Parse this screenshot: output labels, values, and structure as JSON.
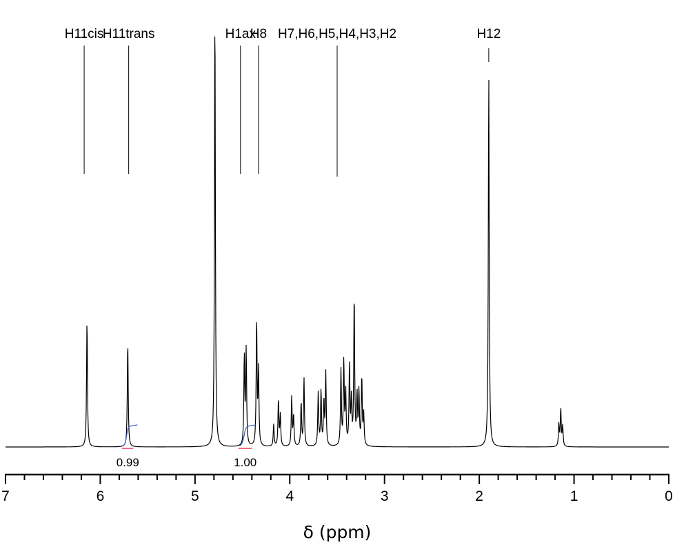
{
  "chart_data": {
    "type": "line",
    "title": "",
    "xlabel": "δ (ppm)",
    "ylabel": "",
    "xlim": [
      7,
      0
    ],
    "x_reversed": true,
    "x_ticks": [
      7,
      6,
      5,
      4,
      3,
      2,
      1,
      0
    ],
    "x_tick_labels": [
      "7",
      "6",
      "5",
      "4",
      "3",
      "2",
      "1",
      "0"
    ],
    "grid": false,
    "legend": "none",
    "line_color": "#000000",
    "peak_labels": [
      {
        "text": "H11cis",
        "ppm": 6.17
      },
      {
        "text": "H11trans",
        "ppm": 5.7
      },
      {
        "text": "H1ax",
        "ppm": 4.52
      },
      {
        "text": "H8",
        "ppm": 4.33
      },
      {
        "text": "H7,H6,H5,H4,H3,H2",
        "ppm": 3.5
      },
      {
        "text": "H12",
        "ppm": 1.9
      }
    ],
    "integrals": [
      {
        "value": "0.99",
        "ppm_from": 5.75,
        "ppm_to": 5.68,
        "center_ppm": 5.71
      },
      {
        "value": "1.00",
        "ppm_from": 4.52,
        "ppm_to": 4.43,
        "center_ppm": 4.47
      }
    ],
    "integral_colors": {
      "curve": "#3a5fc8",
      "baseline": "#e0405a"
    },
    "peaks": [
      {
        "ppm": 6.14,
        "height": 0.29
      },
      {
        "ppm": 5.71,
        "height": 0.24
      },
      {
        "ppm": 4.79,
        "height": 1.0
      },
      {
        "ppm": 4.48,
        "height": 0.205
      },
      {
        "ppm": 4.46,
        "height": 0.215
      },
      {
        "ppm": 4.35,
        "height": 0.285
      },
      {
        "ppm": 4.33,
        "height": 0.17
      },
      {
        "ppm": 4.17,
        "height": 0.05
      },
      {
        "ppm": 4.12,
        "height": 0.105
      },
      {
        "ppm": 4.1,
        "height": 0.07
      },
      {
        "ppm": 3.98,
        "height": 0.11
      },
      {
        "ppm": 3.96,
        "height": 0.07
      },
      {
        "ppm": 3.88,
        "height": 0.1
      },
      {
        "ppm": 3.85,
        "height": 0.155
      },
      {
        "ppm": 3.7,
        "height": 0.12
      },
      {
        "ppm": 3.67,
        "height": 0.125
      },
      {
        "ppm": 3.64,
        "height": 0.1
      },
      {
        "ppm": 3.62,
        "height": 0.165
      },
      {
        "ppm": 3.46,
        "height": 0.17
      },
      {
        "ppm": 3.43,
        "height": 0.19
      },
      {
        "ppm": 3.41,
        "height": 0.12
      },
      {
        "ppm": 3.37,
        "height": 0.18
      },
      {
        "ppm": 3.35,
        "height": 0.1
      },
      {
        "ppm": 3.32,
        "height": 0.34
      },
      {
        "ppm": 3.29,
        "height": 0.11
      },
      {
        "ppm": 3.27,
        "height": 0.12
      },
      {
        "ppm": 3.24,
        "height": 0.155
      },
      {
        "ppm": 3.22,
        "height": 0.07
      },
      {
        "ppm": 1.9,
        "height": 0.845
      },
      {
        "ppm": 1.16,
        "height": 0.05
      },
      {
        "ppm": 1.14,
        "height": 0.085
      },
      {
        "ppm": 1.12,
        "height": 0.045
      }
    ]
  }
}
